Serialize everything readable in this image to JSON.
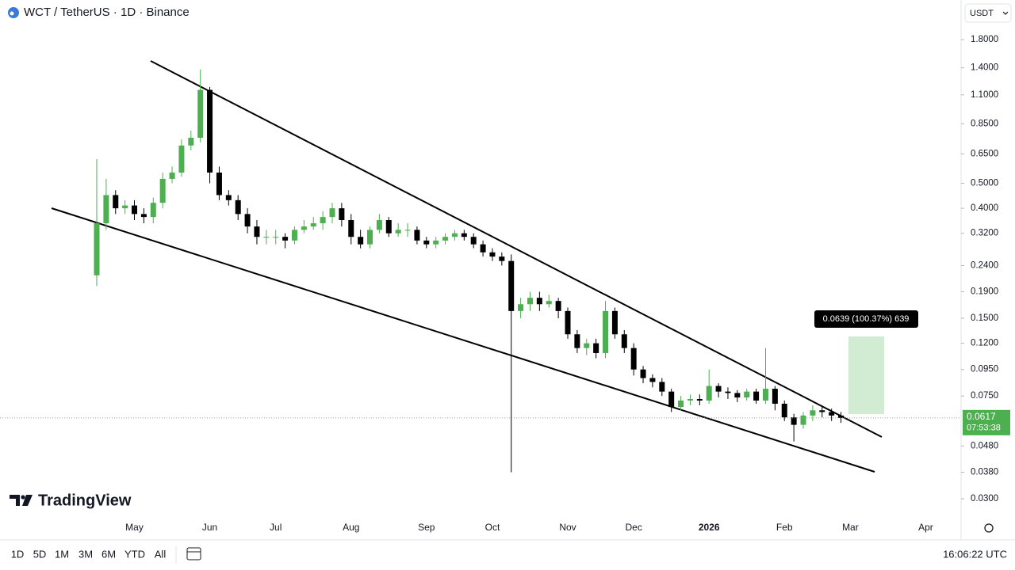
{
  "header": {
    "symbol": "WCT / TetherUS · 1D · Binance",
    "currency": "USDT"
  },
  "chart_data": {
    "type": "candlestick",
    "log_scale": true,
    "up_color": "#4caf50",
    "down_color": "#000000",
    "categories": [
      null,
      null,
      null,
      null,
      "May",
      null,
      null,
      null,
      null,
      null,
      null,
      null,
      "Jun",
      null,
      null,
      null,
      null,
      null,
      null,
      "Jul",
      null,
      null,
      null,
      null,
      null,
      null,
      null,
      "Aug",
      null,
      null,
      null,
      null,
      null,
      null,
      null,
      "Sep",
      null,
      null,
      null,
      null,
      null,
      null,
      "Oct",
      null,
      null,
      null,
      null,
      null,
      null,
      null,
      "Nov",
      null,
      null,
      null,
      null,
      null,
      null,
      "Dec",
      null,
      null,
      null,
      null,
      null,
      null,
      null,
      "2026",
      null,
      null,
      null,
      null,
      null,
      null,
      null,
      "Feb",
      null,
      null,
      null,
      null,
      null,
      null,
      "Mar",
      null,
      null,
      null,
      null,
      null,
      null,
      null,
      "Apr",
      null,
      null
    ],
    "open": [
      0.22,
      0.35,
      0.45,
      0.4,
      0.41,
      0.38,
      0.37,
      0.42,
      0.52,
      0.55,
      0.7,
      0.75,
      1.15,
      0.55,
      0.45,
      0.43,
      0.38,
      0.34,
      0.31,
      0.31,
      0.31,
      0.3,
      0.33,
      0.34,
      0.35,
      0.37,
      0.4,
      0.36,
      0.31,
      0.29,
      0.33,
      0.36,
      0.32,
      0.33,
      0.33,
      0.3,
      0.29,
      0.3,
      0.31,
      0.32,
      0.31,
      0.29,
      0.27,
      0.26,
      0.25,
      0.16,
      0.17,
      0.18,
      0.17,
      0.175,
      0.16,
      0.13,
      0.115,
      0.12,
      0.11,
      0.16,
      0.13,
      0.115,
      0.095,
      0.088,
      0.085,
      0.078,
      0.068,
      0.072,
      0.073,
      0.072,
      0.082,
      0.078,
      0.077,
      0.074,
      0.078,
      0.072,
      0.08,
      0.07,
      0.062,
      0.058,
      0.063,
      0.066,
      0.065,
      0.063,
      null,
      null,
      null,
      null,
      null,
      null,
      null,
      null,
      null,
      null,
      null
    ],
    "high": [
      0.62,
      0.52,
      0.47,
      0.43,
      0.43,
      0.4,
      0.44,
      0.55,
      0.58,
      0.74,
      0.8,
      1.38,
      1.18,
      0.58,
      0.47,
      0.45,
      0.4,
      0.36,
      0.33,
      0.33,
      0.32,
      0.34,
      0.36,
      0.37,
      0.39,
      0.42,
      0.42,
      0.38,
      0.33,
      0.34,
      0.38,
      0.37,
      0.35,
      0.35,
      0.34,
      0.31,
      0.31,
      0.32,
      0.33,
      0.33,
      0.32,
      0.3,
      0.28,
      0.27,
      0.265,
      0.18,
      0.19,
      0.19,
      0.185,
      0.18,
      0.165,
      0.135,
      0.125,
      0.125,
      0.175,
      0.165,
      0.135,
      0.12,
      0.098,
      0.091,
      0.088,
      0.08,
      0.075,
      0.076,
      0.076,
      0.095,
      0.084,
      0.081,
      0.079,
      0.08,
      0.08,
      0.115,
      0.082,
      0.072,
      0.064,
      0.065,
      0.069,
      0.068,
      0.067,
      0.065,
      null,
      null,
      null,
      null,
      null,
      null,
      null,
      null,
      null,
      null,
      null
    ],
    "low": [
      0.2,
      0.33,
      0.38,
      0.38,
      0.36,
      0.35,
      0.35,
      0.4,
      0.5,
      0.53,
      0.67,
      0.72,
      0.5,
      0.43,
      0.41,
      0.36,
      0.32,
      0.29,
      0.29,
      0.29,
      0.28,
      0.29,
      0.32,
      0.33,
      0.33,
      0.35,
      0.34,
      0.29,
      0.28,
      0.28,
      0.32,
      0.31,
      0.31,
      0.31,
      0.29,
      0.28,
      0.28,
      0.29,
      0.3,
      0.3,
      0.28,
      0.26,
      0.25,
      0.24,
      0.038,
      0.15,
      0.16,
      0.16,
      0.165,
      0.15,
      0.125,
      0.11,
      0.108,
      0.105,
      0.105,
      0.125,
      0.11,
      0.09,
      0.084,
      0.081,
      0.075,
      0.065,
      0.066,
      0.069,
      0.069,
      0.07,
      0.074,
      0.073,
      0.071,
      0.072,
      0.07,
      0.07,
      0.066,
      0.06,
      0.05,
      0.056,
      0.06,
      0.062,
      0.06,
      0.059,
      null,
      null,
      null,
      null,
      null,
      null,
      null,
      null,
      null,
      null,
      null
    ],
    "close": [
      0.35,
      0.45,
      0.4,
      0.41,
      0.38,
      0.37,
      0.42,
      0.52,
      0.55,
      0.7,
      0.75,
      1.15,
      0.55,
      0.45,
      0.43,
      0.38,
      0.34,
      0.31,
      0.31,
      0.31,
      0.3,
      0.33,
      0.34,
      0.35,
      0.37,
      0.4,
      0.36,
      0.31,
      0.29,
      0.33,
      0.36,
      0.32,
      0.33,
      0.33,
      0.3,
      0.29,
      0.3,
      0.31,
      0.32,
      0.31,
      0.29,
      0.27,
      0.26,
      0.25,
      0.16,
      0.17,
      0.18,
      0.17,
      0.175,
      0.16,
      0.13,
      0.115,
      0.12,
      0.11,
      0.16,
      0.13,
      0.115,
      0.095,
      0.088,
      0.085,
      0.078,
      0.068,
      0.072,
      0.073,
      0.072,
      0.082,
      0.078,
      0.077,
      0.074,
      0.078,
      0.072,
      0.08,
      0.07,
      0.062,
      0.058,
      0.063,
      0.066,
      0.065,
      0.063,
      0.0617,
      null,
      null,
      null,
      null,
      null,
      null,
      null,
      null,
      null,
      null,
      null
    ],
    "ylim": [
      0.02514,
      2.563
    ],
    "yticks": [
      {
        "value": 1.8,
        "label": "1.8000"
      },
      {
        "value": 1.4,
        "label": "1.4000"
      },
      {
        "value": 1.1,
        "label": "1.1000"
      },
      {
        "value": 0.85,
        "label": "0.8500"
      },
      {
        "value": 0.65,
        "label": "0.6500"
      },
      {
        "value": 0.5,
        "label": "0.5000"
      },
      {
        "value": 0.4,
        "label": "0.4000"
      },
      {
        "value": 0.32,
        "label": "0.3200"
      },
      {
        "value": 0.24,
        "label": "0.2400"
      },
      {
        "value": 0.19,
        "label": "0.1900"
      },
      {
        "value": 0.15,
        "label": "0.1500"
      },
      {
        "value": 0.12,
        "label": "0.1200"
      },
      {
        "value": 0.095,
        "label": "0.0950"
      },
      {
        "value": 0.075,
        "label": "0.0750"
      },
      {
        "value": 0.048,
        "label": "0.0480"
      },
      {
        "value": 0.038,
        "label": "0.0380"
      },
      {
        "value": 0.03,
        "label": "0.0300"
      }
    ],
    "last_price_label": "0.0617",
    "countdown": "07:53:38",
    "measure_label": "0.0639 (100.37%) 639"
  },
  "watermark": "TradingView",
  "toolbar": {
    "ranges": [
      "1D",
      "5D",
      "1M",
      "3M",
      "6M",
      "YTD",
      "All"
    ],
    "clock": "16:06:22 UTC"
  }
}
